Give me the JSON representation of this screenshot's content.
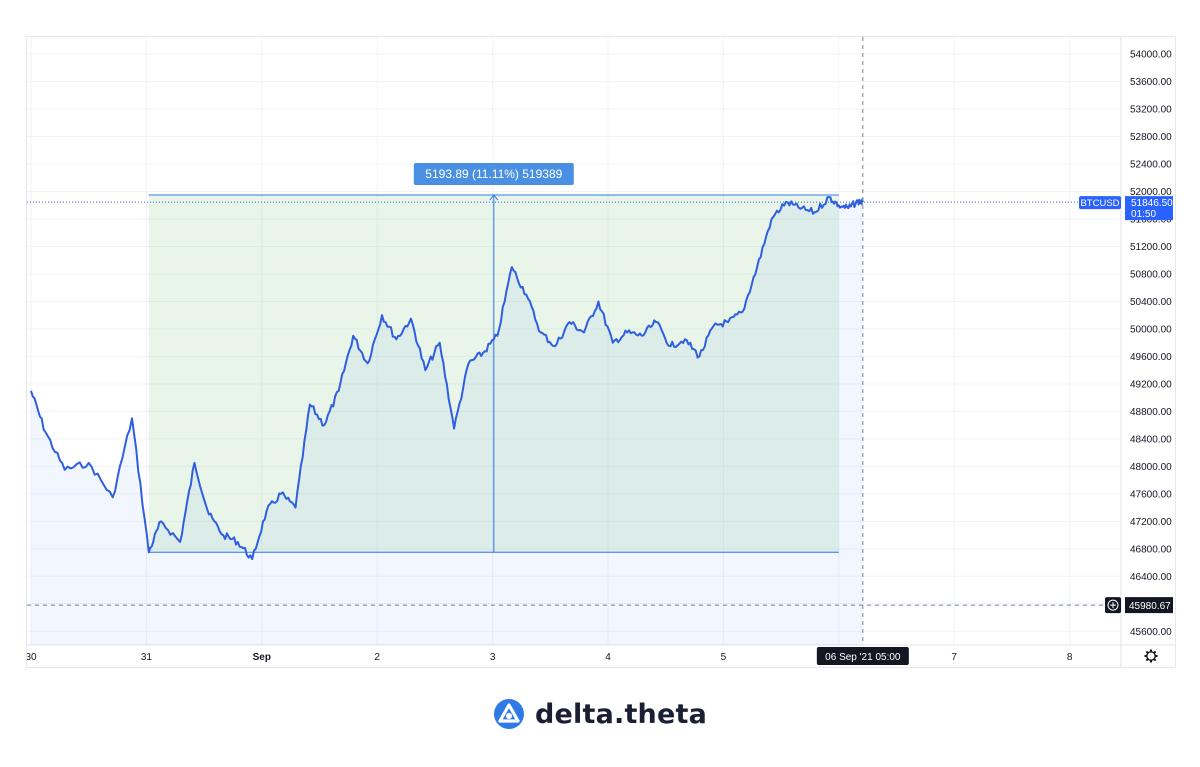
{
  "chart_data": {
    "type": "line",
    "symbol": "BTCUSD",
    "y_ticks": [
      "45600.00",
      "46000.00",
      "46400.00",
      "46800.00",
      "47200.00",
      "47600.00",
      "48000.00",
      "48400.00",
      "48800.00",
      "49200.00",
      "49600.00",
      "50000.00",
      "50400.00",
      "50800.00",
      "51200.00",
      "51600.00",
      "52000.00",
      "52400.00",
      "52800.00",
      "53200.00",
      "53600.00",
      "54000.00"
    ],
    "ylim": [
      45400,
      54250
    ],
    "x_ticks": [
      "30",
      "31",
      "Sep",
      "2",
      "3",
      "4",
      "5",
      "7",
      "8"
    ],
    "x_range_days": [
      "2021-08-30",
      "2021-09-08"
    ],
    "last_price": "51846.50",
    "countdown": "01:50",
    "crosshair_price": "45980.67",
    "crosshair_time": "06 Sep '21  05:00",
    "measure_label": "5193.89 (11.11%) 519389",
    "measure_range": {
      "from_time": "2021-08-31 00:30",
      "to_time": "2021-09-06 00:00",
      "low": 46750,
      "high": 51950
    },
    "series": [
      {
        "name": "BTCUSD",
        "x": [
          "2021-08-30 00:00",
          "2021-08-30 03:00",
          "2021-08-30 07:00",
          "2021-08-30 12:00",
          "2021-08-30 17:00",
          "2021-08-30 21:00",
          "2021-08-31 00:30",
          "2021-08-31 03:00",
          "2021-08-31 07:00",
          "2021-08-31 10:00",
          "2021-08-31 13:00",
          "2021-08-31 16:00",
          "2021-08-31 19:00",
          "2021-08-31 22:00",
          "2021-09-01 01:00",
          "2021-09-01 04:00",
          "2021-09-01 07:00",
          "2021-09-01 10:00",
          "2021-09-01 13:00",
          "2021-09-01 16:00",
          "2021-09-01 19:00",
          "2021-09-01 22:00",
          "2021-09-02 01:00",
          "2021-09-02 04:00",
          "2021-09-02 07:00",
          "2021-09-02 10:00",
          "2021-09-02 13:00",
          "2021-09-02 16:00",
          "2021-09-02 19:00",
          "2021-09-02 22:00",
          "2021-09-03 01:00",
          "2021-09-03 04:00",
          "2021-09-03 07:00",
          "2021-09-03 10:00",
          "2021-09-03 13:00",
          "2021-09-03 16:00",
          "2021-09-03 19:00",
          "2021-09-03 22:00",
          "2021-09-04 01:00",
          "2021-09-04 04:00",
          "2021-09-04 07:00",
          "2021-09-04 10:00",
          "2021-09-04 13:00",
          "2021-09-04 16:00",
          "2021-09-04 19:00",
          "2021-09-04 22:00",
          "2021-09-05 01:00",
          "2021-09-05 04:00",
          "2021-09-05 07:00",
          "2021-09-05 10:00",
          "2021-09-05 13:00",
          "2021-09-05 16:00",
          "2021-09-05 19:00",
          "2021-09-05 22:00",
          "2021-09-06 00:00",
          "2021-09-06 02:00",
          "2021-09-06 04:00",
          "2021-09-06 05:00"
        ],
        "values": [
          49100,
          48500,
          47950,
          48050,
          47550,
          48700,
          46750,
          47200,
          46900,
          48050,
          47300,
          47000,
          46900,
          46650,
          47350,
          47600,
          47400,
          48900,
          48600,
          49100,
          49900,
          49500,
          50200,
          49850,
          50150,
          49400,
          49800,
          48550,
          49500,
          49650,
          49900,
          50900,
          50500,
          49950,
          49750,
          50100,
          49950,
          50400,
          49800,
          49950,
          49900,
          50100,
          49750,
          49850,
          49600,
          50050,
          50100,
          50250,
          50900,
          51600,
          51850,
          51750,
          51700,
          51920,
          51800,
          51760,
          51860,
          51846.5
        ]
      }
    ]
  }
}
